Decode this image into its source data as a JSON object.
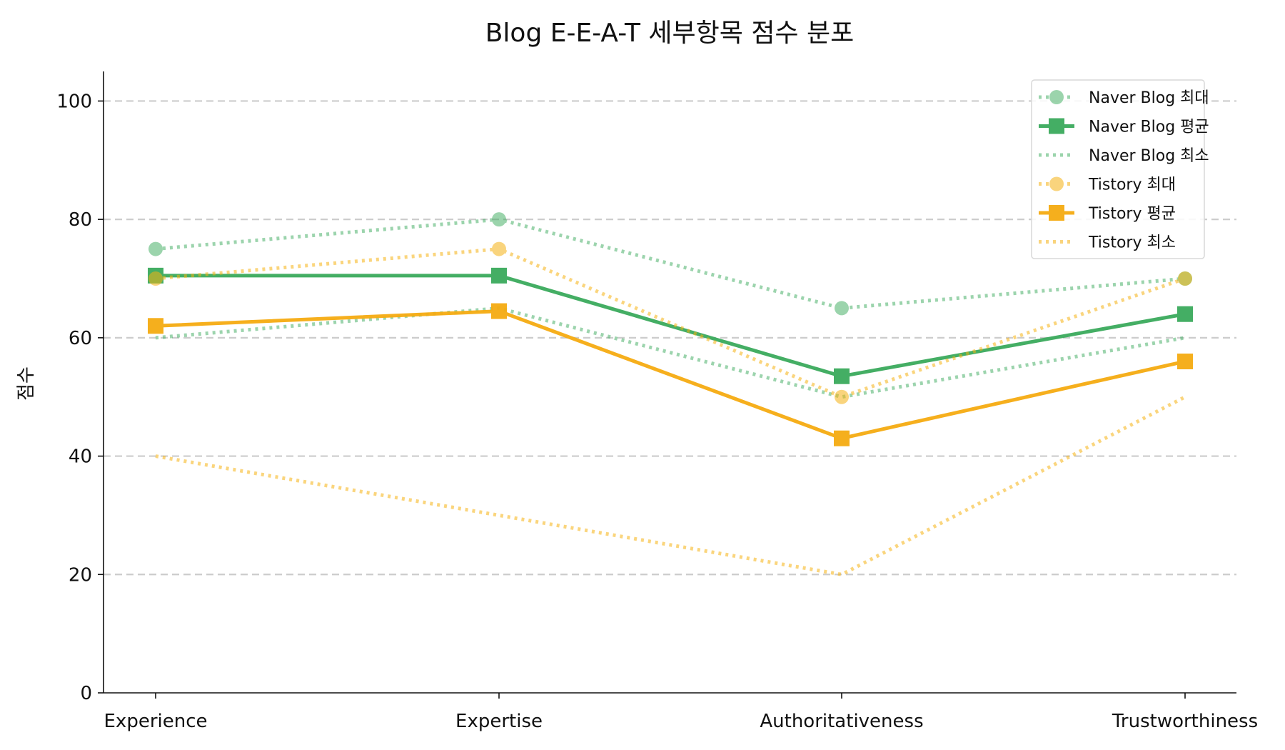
{
  "chart_data": {
    "type": "line",
    "title": "Blog E-E-A-T 세부항목 점수 분포",
    "xlabel": "",
    "ylabel": "점수",
    "categories": [
      "Experience",
      "Expertise",
      "Authoritativeness",
      "Trustworthiness"
    ],
    "ylim": [
      0,
      105
    ],
    "yticks": [
      0,
      20,
      40,
      60,
      80,
      100
    ],
    "grid": "horizontal dashed",
    "legend_position": "top-right",
    "series": [
      {
        "name": "Naver Blog 최대",
        "values": [
          75,
          80,
          65,
          70
        ],
        "color": "#3aaa5c",
        "style": "dotted",
        "marker": "circle",
        "opacity": 0.5
      },
      {
        "name": "Naver Blog 평균",
        "values": [
          70.5,
          70.5,
          53.5,
          64
        ],
        "color": "#3aaa5c",
        "style": "solid",
        "marker": "square",
        "opacity": 0.95
      },
      {
        "name": "Naver Blog 최소",
        "values": [
          60,
          65,
          50,
          60
        ],
        "color": "#3aaa5c",
        "style": "dotted",
        "marker": "none",
        "opacity": 0.5
      },
      {
        "name": "Tistory 최대",
        "values": [
          70,
          75,
          50,
          70
        ],
        "color": "#f5b213",
        "style": "dotted",
        "marker": "circle",
        "opacity": 0.55
      },
      {
        "name": "Tistory 평균",
        "values": [
          62,
          64.5,
          43,
          56
        ],
        "color": "#f5ab11",
        "style": "solid",
        "marker": "square",
        "opacity": 0.95
      },
      {
        "name": "Tistory 최소",
        "values": [
          40,
          30,
          20,
          50
        ],
        "color": "#f5b213",
        "style": "dotted",
        "marker": "none",
        "opacity": 0.55
      }
    ]
  }
}
